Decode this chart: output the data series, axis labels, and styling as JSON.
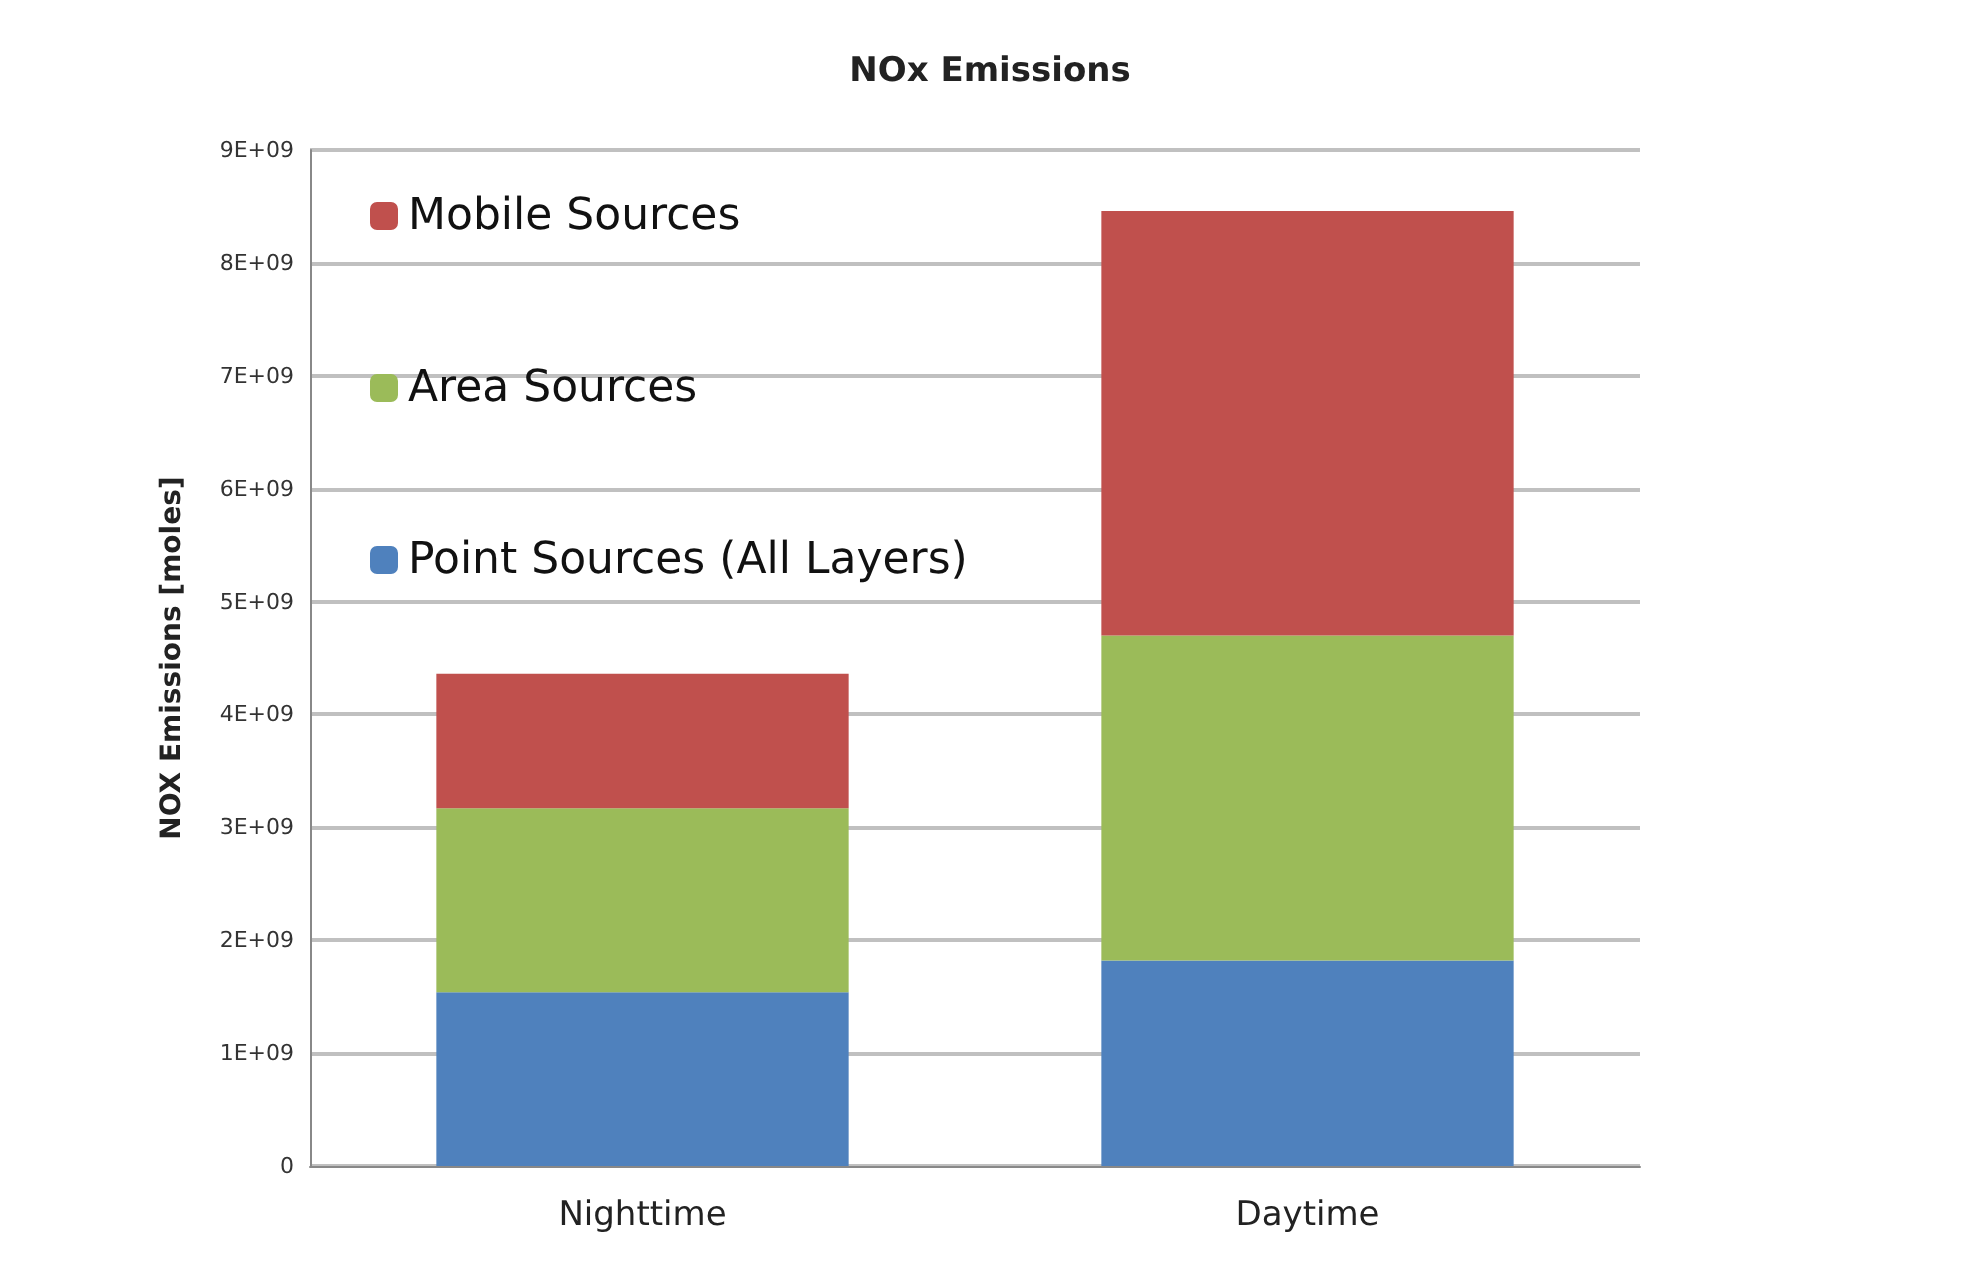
{
  "chart_data": {
    "type": "bar",
    "title": "NOx Emissions",
    "ylabel": "NOX Emissions [moles]",
    "categories": [
      "Nighttime",
      "Daytime"
    ],
    "stacked": true,
    "series": [
      {
        "name": "Point Sources (All Layers)",
        "color": "#4f81bd",
        "values": [
          1540000000,
          1820000000
        ]
      },
      {
        "name": "Area Sources",
        "color": "#9bbb59",
        "values": [
          1630000000,
          2880000000
        ]
      },
      {
        "name": "Mobile Sources",
        "color": "#c0504d",
        "values": [
          1190000000,
          3760000000
        ]
      }
    ],
    "ylim": [
      0,
      9000000000
    ],
    "yticks": [
      {
        "value": 0,
        "label": "0"
      },
      {
        "value": 1000000000,
        "label": "1E+09"
      },
      {
        "value": 2000000000,
        "label": "2E+09"
      },
      {
        "value": 3000000000,
        "label": "3E+09"
      },
      {
        "value": 4000000000,
        "label": "4E+09"
      },
      {
        "value": 5000000000,
        "label": "5E+09"
      },
      {
        "value": 6000000000,
        "label": "6E+09"
      },
      {
        "value": 7000000000,
        "label": "7E+09"
      },
      {
        "value": 8000000000,
        "label": "8E+09"
      },
      {
        "value": 9000000000,
        "label": "9E+09"
      }
    ],
    "grid": "y",
    "legend": "top left"
  }
}
